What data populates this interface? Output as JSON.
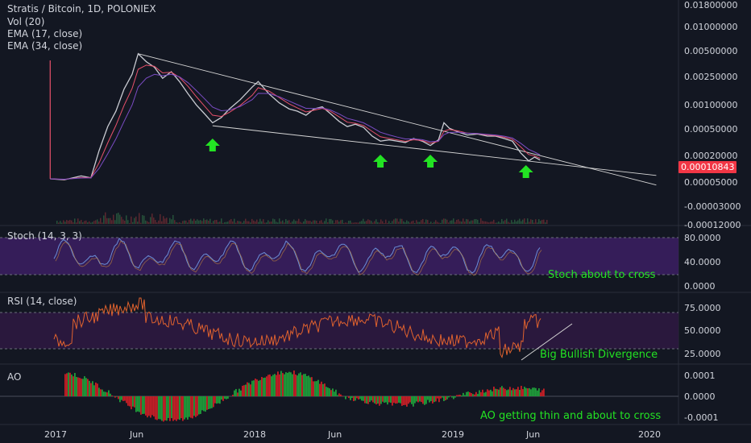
{
  "header": {
    "symbol_title": "Stratis / Bitcoin, 1D, POLONIEX",
    "indicators": [
      "Vol (20)",
      "EMA (17, close)",
      "EMA (34, close)"
    ]
  },
  "last_price": "0.00010843",
  "colors": {
    "background": "#131722",
    "price_line": "#c9cbd2",
    "ema17": "#e8516b",
    "ema34": "#7b4cc4",
    "trendline": "#d6d6d6",
    "arrow": "#23e323",
    "stoch_band": "#3c1f63",
    "stoch_line": "#6a8ed8",
    "rsi_band": "#2d1840",
    "rsi_line": "#e0622e",
    "ao_up": "#1f9e3a",
    "ao_down": "#c81f26",
    "annotation": "#23e323"
  },
  "panels": {
    "stoch": {
      "title": "Stoch (14, 3, 3)",
      "ticks": [
        "80.0000",
        "40.0000",
        "0.0000"
      ],
      "annotation": "Stoch about to cross"
    },
    "rsi": {
      "title": "RSI (14, close)",
      "ticks": [
        "75.0000",
        "50.0000",
        "25.0000"
      ],
      "annotation": "Big Bullish Divergence"
    },
    "ao": {
      "title": "AO",
      "ticks": [
        "0.0001",
        "0.0000",
        "-0.0001"
      ],
      "annotation": "AO getting thin and about to cross"
    }
  },
  "chart_data": {
    "type": "line",
    "y_scale": "log",
    "price_ticks": [
      "0.01800000",
      "0.01000000",
      "0.00500000",
      "0.00250000",
      "0.00100000",
      "0.00050000",
      "0.00020000",
      "0.00005000",
      "-0.00003000",
      "-0.00012000"
    ],
    "x_ticks": [
      "2017",
      "Jun",
      "2018",
      "Jun",
      "2019",
      "Jun",
      "2020"
    ],
    "price_series": [
      {
        "t": "2016-12-25",
        "v": 5.6e-05
      },
      {
        "t": "2017-01-20",
        "v": 5.4e-05
      },
      {
        "t": "2017-02-20",
        "v": 6.2e-05
      },
      {
        "t": "2017-03-10",
        "v": 5.8e-05
      },
      {
        "t": "2017-03-25",
        "v": 0.00015
      },
      {
        "t": "2017-04-10",
        "v": 0.00035
      },
      {
        "t": "2017-04-25",
        "v": 0.0006
      },
      {
        "t": "2017-05-10",
        "v": 0.0013
      },
      {
        "t": "2017-05-25",
        "v": 0.0022
      },
      {
        "t": "2017-06-05",
        "v": 0.0045
      },
      {
        "t": "2017-06-20",
        "v": 0.0034
      },
      {
        "t": "2017-07-05",
        "v": 0.0028
      },
      {
        "t": "2017-07-20",
        "v": 0.0019
      },
      {
        "t": "2017-08-05",
        "v": 0.0024
      },
      {
        "t": "2017-08-20",
        "v": 0.0017
      },
      {
        "t": "2017-09-05",
        "v": 0.0011
      },
      {
        "t": "2017-09-20",
        "v": 0.00075
      },
      {
        "t": "2017-10-05",
        "v": 0.00055
      },
      {
        "t": "2017-10-20",
        "v": 0.0004
      },
      {
        "t": "2017-11-05",
        "v": 0.00048
      },
      {
        "t": "2017-11-20",
        "v": 0.00065
      },
      {
        "t": "2017-12-10",
        "v": 0.0009
      },
      {
        "t": "2018-01-01",
        "v": 0.0014
      },
      {
        "t": "2018-01-12",
        "v": 0.0017
      },
      {
        "t": "2018-02-01",
        "v": 0.0011
      },
      {
        "t": "2018-02-20",
        "v": 0.0008
      },
      {
        "t": "2018-03-10",
        "v": 0.00065
      },
      {
        "t": "2018-03-25",
        "v": 0.0006
      },
      {
        "t": "2018-04-10",
        "v": 0.00052
      },
      {
        "t": "2018-04-25",
        "v": 0.00065
      },
      {
        "t": "2018-05-10",
        "v": 0.0007
      },
      {
        "t": "2018-05-25",
        "v": 0.00055
      },
      {
        "t": "2018-06-10",
        "v": 0.00042
      },
      {
        "t": "2018-06-25",
        "v": 0.00035
      },
      {
        "t": "2018-07-10",
        "v": 0.00038
      },
      {
        "t": "2018-07-25",
        "v": 0.00034
      },
      {
        "t": "2018-08-10",
        "v": 0.00025
      },
      {
        "t": "2018-08-25",
        "v": 0.00021
      },
      {
        "t": "2018-09-10",
        "v": 0.00022
      },
      {
        "t": "2018-09-25",
        "v": 0.00021
      },
      {
        "t": "2018-10-10",
        "v": 0.0002
      },
      {
        "t": "2018-10-25",
        "v": 0.00023
      },
      {
        "t": "2018-11-10",
        "v": 0.00021
      },
      {
        "t": "2018-11-25",
        "v": 0.00018
      },
      {
        "t": "2018-12-10",
        "v": 0.00022
      },
      {
        "t": "2018-12-20",
        "v": 0.0004
      },
      {
        "t": "2018-12-30",
        "v": 0.00033
      },
      {
        "t": "2019-01-15",
        "v": 0.00029
      },
      {
        "t": "2019-02-01",
        "v": 0.00026
      },
      {
        "t": "2019-02-20",
        "v": 0.00027
      },
      {
        "t": "2019-03-10",
        "v": 0.00025
      },
      {
        "t": "2019-03-25",
        "v": 0.00025
      },
      {
        "t": "2019-04-10",
        "v": 0.00023
      },
      {
        "t": "2019-04-25",
        "v": 0.00021
      },
      {
        "t": "2019-05-10",
        "v": 0.00014
      },
      {
        "t": "2019-05-25",
        "v": 0.000105
      },
      {
        "t": "2019-06-05",
        "v": 0.00012
      },
      {
        "t": "2019-06-15",
        "v": 0.000108
      }
    ],
    "trendlines": [
      {
        "from": {
          "t": "2017-06-05",
          "v": 0.0045
        },
        "to": {
          "t": "2020-01-15",
          "v": 4.5e-05
        }
      },
      {
        "from": {
          "t": "2017-10-20",
          "v": 0.00036
        },
        "to": {
          "t": "2020-01-15",
          "v": 6.3e-05
        }
      }
    ],
    "arrows": [
      "2017-10-20",
      "2018-08-25",
      "2018-11-25",
      "2019-05-20"
    ]
  }
}
